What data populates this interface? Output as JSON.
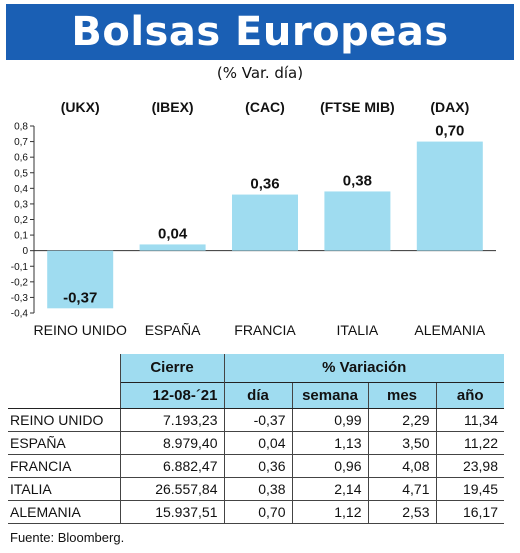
{
  "title": "Bolsas Europeas",
  "subtitle": "(% Var. día)",
  "chart_data": {
    "type": "bar",
    "tickers": [
      "(UKX)",
      "(IBEX)",
      "(CAC)",
      "(FTSE MIB)",
      "(DAX)"
    ],
    "categories": [
      "REINO UNIDO",
      "ESPAÑA",
      "FRANCIA",
      "ITALIA",
      "ALEMANIA"
    ],
    "values": [
      -0.37,
      0.04,
      0.36,
      0.38,
      0.7
    ],
    "value_labels": [
      "-0,37",
      "0,04",
      "0,36",
      "0,38",
      "0,70"
    ],
    "ylim": [
      -0.4,
      0.8
    ],
    "yticks": [
      0.8,
      0.7,
      0.6,
      0.5,
      0.4,
      0.3,
      0.2,
      0.1,
      0,
      -0.1,
      -0.2,
      -0.3,
      -0.4
    ],
    "ytick_labels": [
      "0,8",
      "0,7",
      "0,6",
      "0,5",
      "0,4",
      "0,3",
      "0,2",
      "0,1",
      "0",
      "-0,1",
      "-0,2",
      "-0,3",
      "-0,4"
    ],
    "bar_color": "#9fdcf0",
    "grid": false
  },
  "table": {
    "header_cierre": "Cierre",
    "header_variacion": "% Variación",
    "date": "12-08-´21",
    "cols": [
      "día",
      "semana",
      "mes",
      "año"
    ],
    "rows": [
      {
        "name": "REINO UNIDO",
        "cierre": "7.193,23",
        "dia": "-0,37",
        "semana": "0,99",
        "mes": "2,29",
        "ano": "11,34"
      },
      {
        "name": "ESPAÑA",
        "cierre": "8.979,40",
        "dia": "0,04",
        "semana": "1,13",
        "mes": "3,50",
        "ano": "11,22"
      },
      {
        "name": "FRANCIA",
        "cierre": "6.882,47",
        "dia": "0,36",
        "semana": "0,96",
        "mes": "4,08",
        "ano": "23,98"
      },
      {
        "name": "ITALIA",
        "cierre": "26.557,84",
        "dia": "0,38",
        "semana": "2,14",
        "mes": "4,71",
        "ano": "19,45"
      },
      {
        "name": "ALEMANIA",
        "cierre": "15.937,51",
        "dia": "0,70",
        "semana": "1,12",
        "mes": "2,53",
        "ano": "16,17"
      }
    ]
  },
  "source": "Fuente: Bloomberg."
}
